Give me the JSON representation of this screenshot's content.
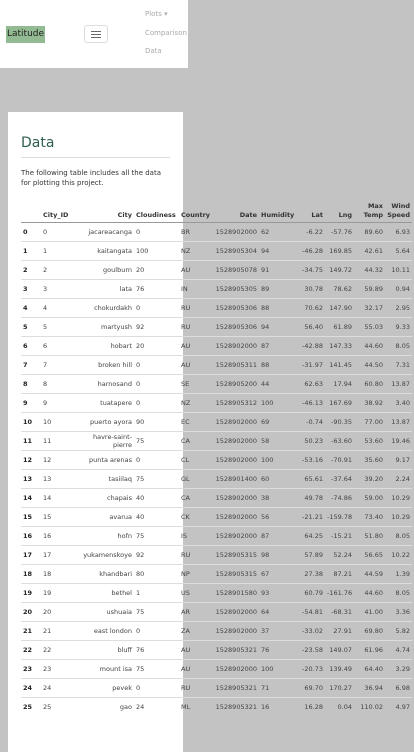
{
  "nav": {
    "brand": "Latitude",
    "links": [
      "Plots ▾",
      "Comparison",
      "Data"
    ]
  },
  "section": {
    "title": "Data",
    "description": "The following table includes all the data for plotting this project."
  },
  "table": {
    "columns": [
      "",
      "City_ID",
      "City",
      "Cloudiness",
      "Country",
      "Date",
      "Humidity",
      "Lat",
      "Lng",
      "Max Temp",
      "Wind Speed"
    ],
    "rows": [
      [
        "0",
        "0",
        "jacareacanga",
        "0",
        "BR",
        "1528902000",
        "62",
        "-6.22",
        "-57.76",
        "89.60",
        "6.93"
      ],
      [
        "1",
        "1",
        "kaitangata",
        "100",
        "NZ",
        "1528905304",
        "94",
        "-46.28",
        "169.85",
        "42.61",
        "5.64"
      ],
      [
        "2",
        "2",
        "goulburn",
        "20",
        "AU",
        "1528905078",
        "91",
        "-34.75",
        "149.72",
        "44.32",
        "10.11"
      ],
      [
        "3",
        "3",
        "lata",
        "76",
        "IN",
        "1528905305",
        "89",
        "30.78",
        "78.62",
        "59.89",
        "0.94"
      ],
      [
        "4",
        "4",
        "chokurdakh",
        "0",
        "RU",
        "1528905306",
        "88",
        "70.62",
        "147.90",
        "32.17",
        "2.95"
      ],
      [
        "5",
        "5",
        "martyush",
        "92",
        "RU",
        "1528905306",
        "94",
        "56.40",
        "61.89",
        "55.03",
        "9.33"
      ],
      [
        "6",
        "6",
        "hobart",
        "20",
        "AU",
        "1528902000",
        "87",
        "-42.88",
        "147.33",
        "44.60",
        "8.05"
      ],
      [
        "7",
        "7",
        "broken hill",
        "0",
        "AU",
        "1528905311",
        "88",
        "-31.97",
        "141.45",
        "44.50",
        "7.31"
      ],
      [
        "8",
        "8",
        "harnosand",
        "0",
        "SE",
        "1528905200",
        "44",
        "62.63",
        "17.94",
        "60.80",
        "13.87"
      ],
      [
        "9",
        "9",
        "tuatapere",
        "0",
        "NZ",
        "1528905312",
        "100",
        "-46.13",
        "167.69",
        "38.92",
        "3.40"
      ],
      [
        "10",
        "10",
        "puerto ayora",
        "90",
        "EC",
        "1528902000",
        "69",
        "-0.74",
        "-90.35",
        "77.00",
        "13.87"
      ],
      [
        "11",
        "11",
        "havre-saint-pierre",
        "75",
        "CA",
        "1528902000",
        "58",
        "50.23",
        "-63.60",
        "53.60",
        "19.46"
      ],
      [
        "12",
        "12",
        "punta arenas",
        "0",
        "CL",
        "1528902000",
        "100",
        "-53.16",
        "-70.91",
        "35.60",
        "9.17"
      ],
      [
        "13",
        "13",
        "tasiilaq",
        "75",
        "GL",
        "1528901400",
        "60",
        "65.61",
        "-37.64",
        "39.20",
        "2.24"
      ],
      [
        "14",
        "14",
        "chapais",
        "40",
        "CA",
        "1528902000",
        "38",
        "49.78",
        "-74.86",
        "59.00",
        "10.29"
      ],
      [
        "15",
        "15",
        "avarua",
        "40",
        "CK",
        "1528902000",
        "56",
        "-21.21",
        "-159.78",
        "73.40",
        "10.29"
      ],
      [
        "16",
        "16",
        "hofn",
        "75",
        "IS",
        "1528902000",
        "87",
        "64.25",
        "-15.21",
        "51.80",
        "8.05"
      ],
      [
        "17",
        "17",
        "yukamenskoye",
        "92",
        "RU",
        "1528905315",
        "98",
        "57.89",
        "52.24",
        "56.65",
        "10.22"
      ],
      [
        "18",
        "18",
        "khandbari",
        "80",
        "NP",
        "1528905315",
        "67",
        "27.38",
        "87.21",
        "44.59",
        "1.39"
      ],
      [
        "19",
        "19",
        "bethel",
        "1",
        "US",
        "1528901580",
        "93",
        "60.79",
        "-161.76",
        "44.60",
        "8.05"
      ],
      [
        "20",
        "20",
        "ushuaia",
        "75",
        "AR",
        "1528902000",
        "64",
        "-54.81",
        "-68.31",
        "41.00",
        "3.36"
      ],
      [
        "21",
        "21",
        "east london",
        "0",
        "ZA",
        "1528902000",
        "37",
        "-33.02",
        "27.91",
        "69.80",
        "5.82"
      ],
      [
        "22",
        "22",
        "bluff",
        "76",
        "AU",
        "1528905321",
        "76",
        "-23.58",
        "149.07",
        "61.96",
        "4.74"
      ],
      [
        "23",
        "23",
        "mount isa",
        "75",
        "AU",
        "1528902000",
        "100",
        "-20.73",
        "139.49",
        "64.40",
        "3.29"
      ],
      [
        "24",
        "24",
        "pevek",
        "0",
        "RU",
        "1528905321",
        "71",
        "69.70",
        "170.27",
        "36.94",
        "6.98"
      ],
      [
        "25",
        "25",
        "gao",
        "24",
        "ML",
        "1528905321",
        "16",
        "16.28",
        "0.04",
        "110.02",
        "4.97"
      ]
    ]
  }
}
